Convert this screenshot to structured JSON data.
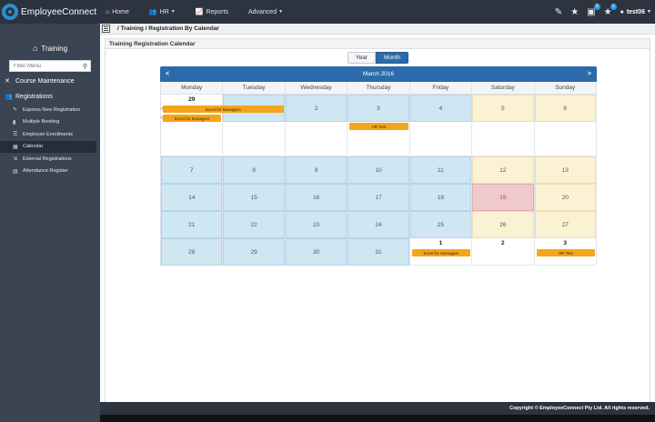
{
  "app": {
    "brand": "EmployeeConnect"
  },
  "nav": [
    {
      "label": "Home",
      "icon": "home-icon",
      "glyph": "⌂",
      "caret": false
    },
    {
      "label": "HR",
      "icon": "users-icon",
      "glyph": "👥",
      "caret": true
    },
    {
      "label": "Reports",
      "icon": "chart-icon",
      "glyph": "📈",
      "caret": false
    },
    {
      "label": "Advanced",
      "icon": "",
      "glyph": "",
      "caret": true
    }
  ],
  "topRight": {
    "pencil_badge": "",
    "star_badge": "",
    "inbox_badge": "2",
    "star2_badge": "1",
    "user": "test06"
  },
  "sidebar": {
    "title": "Training",
    "filter_placeholder": "Filter Menu",
    "sections": [
      {
        "label": "Course Maintenance",
        "icon": "tools-icon",
        "glyph": "✕"
      },
      {
        "label": "Registrations",
        "icon": "people-icon",
        "glyph": "👥"
      }
    ],
    "items": [
      {
        "label": "Express New Registration",
        "icon": "wand-icon",
        "glyph": "✎",
        "active": false
      },
      {
        "label": "Multiple Booking",
        "icon": "bar-chart-icon",
        "glyph": "▮",
        "active": false
      },
      {
        "label": "Employee Enrollments",
        "icon": "list-icon",
        "glyph": "☰",
        "active": false
      },
      {
        "label": "Calendar",
        "icon": "calendar-icon",
        "glyph": "▦",
        "active": true
      },
      {
        "label": "External Registrations",
        "icon": "external-icon",
        "glyph": "⇲",
        "active": false
      },
      {
        "label": "Attendance Register",
        "icon": "register-icon",
        "glyph": "▤",
        "active": false
      }
    ]
  },
  "breadcrumb": "/ Training / Registration By Calendar",
  "panel": {
    "title": "Training Registration Calendar",
    "view_year": "Year",
    "view_month": "Month"
  },
  "calendar": {
    "month_label": "March 2016",
    "prev": "<",
    "next": ">",
    "weekdays": [
      "Monday",
      "Tuesday",
      "Wednesday",
      "Thursday",
      "Friday",
      "Saturday",
      "Sunday"
    ],
    "weeks": [
      [
        {
          "d": "29",
          "type": "other"
        },
        {
          "d": "1",
          "type": "inmonth"
        },
        {
          "d": "2",
          "type": "inmonth"
        },
        {
          "d": "3",
          "type": "inmonth"
        },
        {
          "d": "4",
          "type": "inmonth"
        },
        {
          "d": "5",
          "type": "weekend"
        },
        {
          "d": "6",
          "type": "weekend"
        }
      ],
      [
        {
          "d": "7",
          "type": "inmonth"
        },
        {
          "d": "8",
          "type": "inmonth"
        },
        {
          "d": "9",
          "type": "inmonth"
        },
        {
          "d": "10",
          "type": "inmonth"
        },
        {
          "d": "11",
          "type": "inmonth"
        },
        {
          "d": "12",
          "type": "weekend"
        },
        {
          "d": "13",
          "type": "weekend"
        }
      ],
      [
        {
          "d": "14",
          "type": "inmonth"
        },
        {
          "d": "15",
          "type": "inmonth"
        },
        {
          "d": "16",
          "type": "inmonth"
        },
        {
          "d": "17",
          "type": "inmonth"
        },
        {
          "d": "18",
          "type": "inmonth"
        },
        {
          "d": "19",
          "type": "today"
        },
        {
          "d": "20",
          "type": "weekend"
        }
      ],
      [
        {
          "d": "21",
          "type": "inmonth"
        },
        {
          "d": "22",
          "type": "inmonth"
        },
        {
          "d": "23",
          "type": "inmonth"
        },
        {
          "d": "24",
          "type": "inmonth"
        },
        {
          "d": "25",
          "type": "inmonth"
        },
        {
          "d": "26",
          "type": "weekend"
        },
        {
          "d": "27",
          "type": "weekend"
        }
      ],
      [
        {
          "d": "28",
          "type": "inmonth"
        },
        {
          "d": "29",
          "type": "inmonth"
        },
        {
          "d": "30",
          "type": "inmonth"
        },
        {
          "d": "31",
          "type": "inmonth"
        },
        {
          "d": "1",
          "type": "other"
        },
        {
          "d": "2",
          "type": "other"
        },
        {
          "d": "3",
          "type": "other"
        }
      ]
    ],
    "events": [
      {
        "title": "Excel for Managers",
        "week": 0,
        "startCol": 0,
        "span": 2,
        "lane": 0,
        "continues": true
      },
      {
        "title": "Excel for Managers",
        "week": 0,
        "startCol": 0,
        "span": 1,
        "lane": 1,
        "continues": true
      },
      {
        "title": "HR Test",
        "week": 0,
        "startCol": 3,
        "span": 1,
        "lane": 0,
        "continues": false
      },
      {
        "title": "Excel for Managers",
        "week": 4,
        "startCol": 4,
        "span": 1,
        "lane": 0,
        "continues": false
      },
      {
        "title": "HR Test",
        "week": 4,
        "startCol": 6,
        "span": 1,
        "lane": 0,
        "continues": false
      }
    ]
  },
  "footer": "Copyright © EmployeeConnect Pty Ltd. All rights reserved.",
  "colors": {
    "topbar": "#2d3440",
    "sidebar": "#3a4452",
    "accent": "#2c6bab",
    "event": "#f5a51b",
    "weekday_cell": "#cfe6f3",
    "weekend_cell": "#fbf2d3",
    "today_cell": "#f0c9cc"
  }
}
